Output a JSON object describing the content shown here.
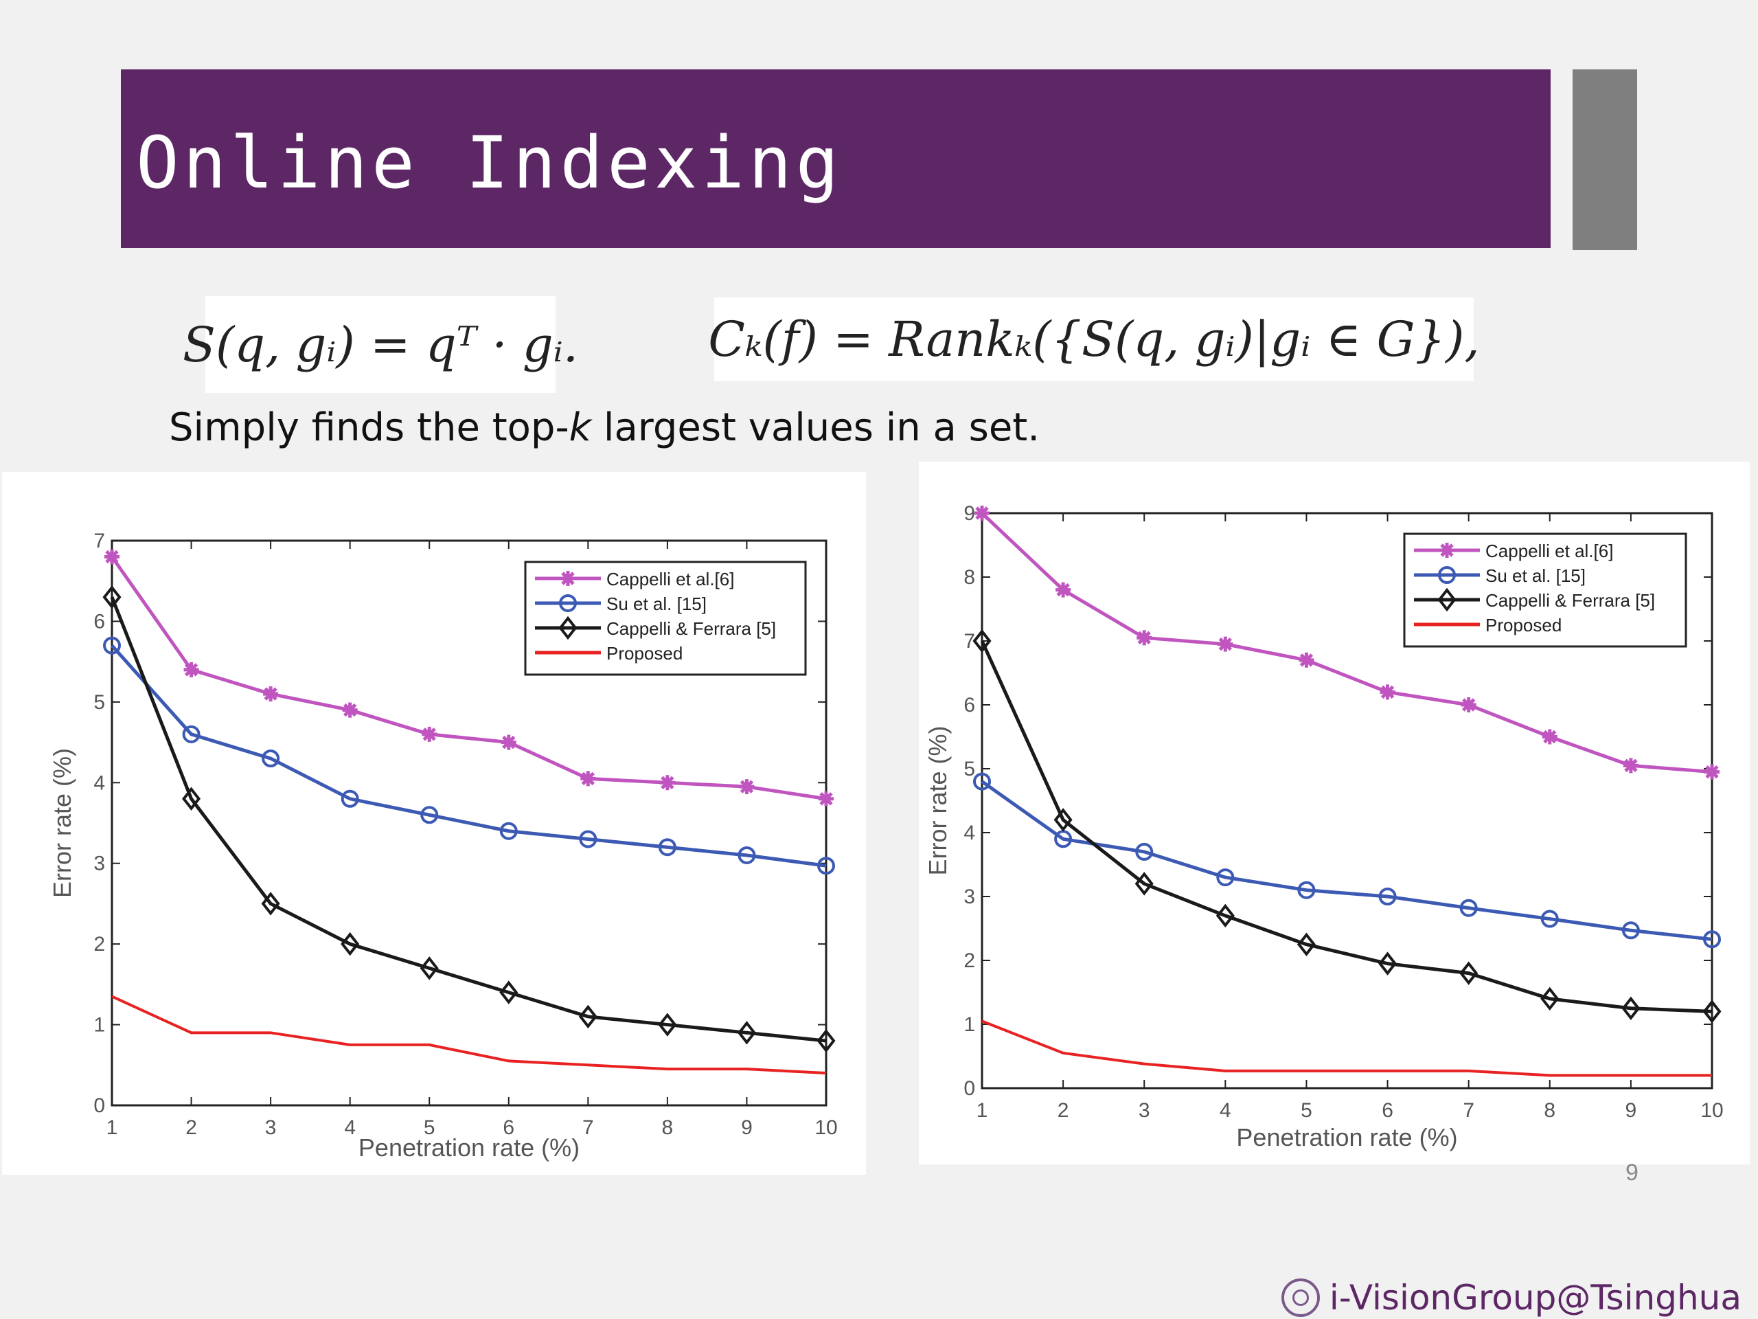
{
  "slide": {
    "title": "Online Indexing",
    "formula_1": "S(q, gᵢ) = qᵀ · gᵢ.",
    "formula_2": "Cₖ(f) = Rankₖ({S(q, gᵢ)|gᵢ ∈ G}),",
    "subtitle_before": "Simply finds the top-",
    "subtitle_k": "k",
    "subtitle_after": " largest values in a set.",
    "page_number": "9",
    "footer_text": "i-VisionGroup@Tsinghua"
  },
  "colors": {
    "title_bar": "#5d2766",
    "side_block": "#7f7f7f",
    "cappelli": "#c055c0",
    "su": "#3c5ab4",
    "cappelli_ferrara": "#1a1a1a",
    "proposed": "#e82222"
  },
  "chart_data": [
    {
      "type": "line",
      "xlabel": "Penetration rate (%)",
      "ylabel": "Error rate (%)",
      "xlim": [
        1,
        10
      ],
      "ylim": [
        0,
        7
      ],
      "x": [
        1,
        2,
        3,
        4,
        5,
        6,
        7,
        8,
        9,
        10
      ],
      "yticks": [
        0,
        1,
        2,
        3,
        4,
        5,
        6,
        7
      ],
      "legend_position": "top-right",
      "grid": false,
      "series": [
        {
          "name": "Cappelli et al.[6]",
          "marker": "asterisk",
          "color": "#c055c0",
          "values": [
            6.8,
            5.4,
            5.1,
            4.9,
            4.6,
            4.5,
            4.05,
            4.0,
            3.95,
            3.8
          ]
        },
        {
          "name": "Su et al. [15]",
          "marker": "circle",
          "color": "#3c5ab4",
          "values": [
            5.7,
            4.6,
            4.3,
            3.8,
            3.6,
            3.4,
            3.3,
            3.2,
            3.1,
            2.97
          ]
        },
        {
          "name": "Cappelli & Ferrara [5]",
          "marker": "diamond",
          "color": "#1a1a1a",
          "values": [
            6.3,
            3.8,
            2.5,
            2.0,
            1.7,
            1.4,
            1.1,
            1.0,
            0.9,
            0.8
          ]
        },
        {
          "name": "Proposed",
          "marker": "none",
          "color": "#e82222",
          "values": [
            1.35,
            0.9,
            0.9,
            0.75,
            0.75,
            0.55,
            0.5,
            0.45,
            0.45,
            0.4
          ]
        }
      ]
    },
    {
      "type": "line",
      "xlabel": "Penetration rate (%)",
      "ylabel": "Error rate (%)",
      "xlim": [
        1,
        10
      ],
      "ylim": [
        0,
        9
      ],
      "x": [
        1,
        2,
        3,
        4,
        5,
        6,
        7,
        8,
        9,
        10
      ],
      "yticks": [
        0,
        1,
        2,
        3,
        4,
        5,
        6,
        7,
        8,
        9
      ],
      "legend_position": "top-right",
      "grid": false,
      "series": [
        {
          "name": "Cappelli et al.[6]",
          "marker": "asterisk",
          "color": "#c055c0",
          "values": [
            9.0,
            7.8,
            7.05,
            6.95,
            6.7,
            6.2,
            6.0,
            5.5,
            5.05,
            4.95
          ]
        },
        {
          "name": "Su et al. [15]",
          "marker": "circle",
          "color": "#3c5ab4",
          "values": [
            4.8,
            3.9,
            3.7,
            3.3,
            3.1,
            3.0,
            2.82,
            2.65,
            2.47,
            2.33
          ]
        },
        {
          "name": "Cappelli & Ferrara [5]",
          "marker": "diamond",
          "color": "#1a1a1a",
          "values": [
            7.0,
            4.2,
            3.2,
            2.7,
            2.25,
            1.95,
            1.8,
            1.4,
            1.25,
            1.2
          ]
        },
        {
          "name": "Proposed",
          "marker": "none",
          "color": "#e82222",
          "values": [
            1.05,
            0.55,
            0.38,
            0.27,
            0.27,
            0.27,
            0.27,
            0.2,
            0.2,
            0.2
          ]
        }
      ]
    }
  ]
}
